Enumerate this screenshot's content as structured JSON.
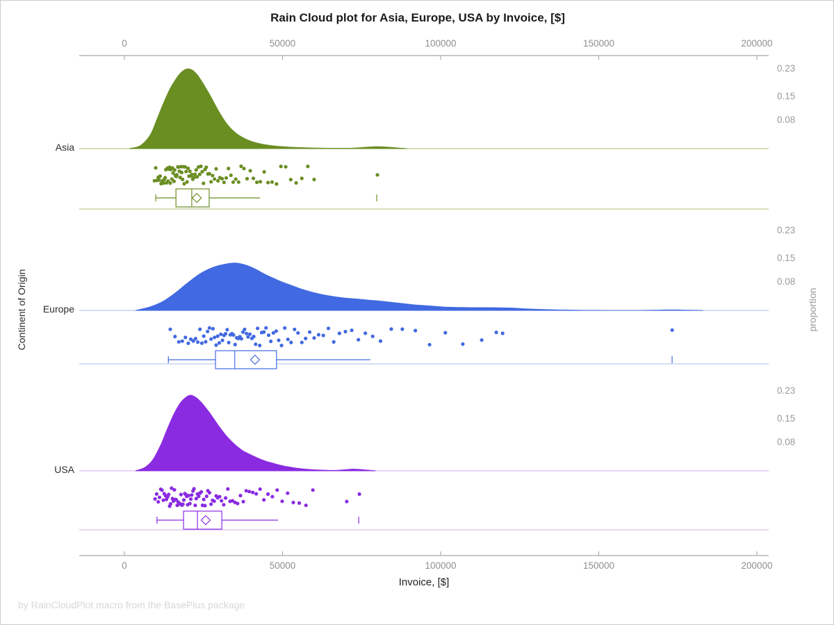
{
  "title": "Rain Cloud plot for Asia, Europe, USA by Invoice, [$]",
  "footer": "by RainCloudPlot macro from the BasePlus package",
  "x_axis": {
    "label": "Invoice, [$]",
    "tick_values": [
      0,
      50000,
      100000,
      150000,
      200000
    ],
    "tick_labels": [
      "0",
      "50000",
      "100000",
      "150000",
      "200000"
    ]
  },
  "y_axis": {
    "label": "Continent of Origin",
    "categories": [
      "Asia",
      "Europe",
      "USA"
    ]
  },
  "right_axis": {
    "label": "proportion",
    "tick_values": [
      0.23,
      0.15,
      0.08
    ],
    "tick_labels": [
      "0.23",
      "0.15",
      "0.08"
    ]
  },
  "colors": {
    "axis_line": "#a9a9a9",
    "tick_text": "#8e8e8e",
    "asia": "#6B8E23",
    "asia_light": "#a9c072",
    "europe": "#4169E1",
    "europe_light": "#aabdec",
    "usa": "#8A2BE2",
    "usa_light": "#cfaeea"
  },
  "chart_data": {
    "type": "raincloud",
    "title": "Rain Cloud plot for Asia, Europe, USA by Invoice, [$]",
    "xlabel": "Invoice, [$]",
    "ylabel": "Continent of Origin",
    "right_label": "proportion",
    "xlim": [
      0,
      200000
    ],
    "proportion_ticks": [
      0.23,
      0.15,
      0.08
    ],
    "legend": "none",
    "series": [
      {
        "name": "Asia",
        "color": "#6B8E23",
        "light_color": "#a9c072",
        "seed": 1,
        "density": [
          [
            1500,
            0
          ],
          [
            4500,
            0.006
          ],
          [
            6500,
            0.02
          ],
          [
            8500,
            0.045
          ],
          [
            10500,
            0.09
          ],
          [
            12500,
            0.135
          ],
          [
            14500,
            0.175
          ],
          [
            16500,
            0.205
          ],
          [
            18000,
            0.222
          ],
          [
            19800,
            0.232
          ],
          [
            21500,
            0.228
          ],
          [
            23000,
            0.215
          ],
          [
            24500,
            0.195
          ],
          [
            26000,
            0.172
          ],
          [
            27500,
            0.148
          ],
          [
            29000,
            0.122
          ],
          [
            30500,
            0.098
          ],
          [
            32000,
            0.077
          ],
          [
            33500,
            0.06
          ],
          [
            35000,
            0.047
          ],
          [
            36500,
            0.037
          ],
          [
            38500,
            0.027
          ],
          [
            40500,
            0.02
          ],
          [
            43000,
            0.014
          ],
          [
            45500,
            0.01
          ],
          [
            48000,
            0.007
          ],
          [
            51000,
            0.005
          ],
          [
            54000,
            0.0035
          ],
          [
            57000,
            0.0025
          ],
          [
            60000,
            0.0018
          ],
          [
            63000,
            0.0012
          ],
          [
            66000,
            0.001
          ],
          [
            70000,
            0.001
          ],
          [
            73500,
            0.002
          ],
          [
            76500,
            0.004
          ],
          [
            79500,
            0.0055
          ],
          [
            82000,
            0.005
          ],
          [
            84500,
            0.0035
          ],
          [
            87000,
            0.0015
          ],
          [
            89500,
            0
          ]
        ],
        "points": [
          9500,
          9900,
          10300,
          10700,
          11000,
          11300,
          11600,
          11900,
          12100,
          12400,
          12600,
          12900,
          13100,
          13300,
          13600,
          13800,
          14000,
          14300,
          14500,
          14700,
          15000,
          15200,
          15400,
          15700,
          15900,
          16100,
          16400,
          16600,
          16900,
          17100,
          17400,
          17600,
          17900,
          18100,
          18400,
          18700,
          18900,
          19200,
          19500,
          19800,
          20100,
          20400,
          20700,
          21000,
          21300,
          21600,
          22000,
          22300,
          22700,
          23000,
          23400,
          23800,
          24200,
          24600,
          25000,
          25500,
          25900,
          26400,
          26900,
          27400,
          27900,
          28500,
          29000,
          29600,
          30200,
          30900,
          31500,
          32200,
          32900,
          33700,
          34400,
          35200,
          36100,
          36900,
          37800,
          38800,
          39800,
          40800,
          41900,
          43000,
          44200,
          45400,
          46700,
          48100,
          49500,
          51000,
          52600,
          54300,
          56100,
          58000,
          60000,
          80000
        ],
        "box": {
          "whisker_lo": 9900,
          "q1": 16300,
          "median": 21300,
          "mean": 22900,
          "q3": 26800,
          "whisker_hi": 42900,
          "outliers": [
            79800
          ]
        }
      },
      {
        "name": "Europe",
        "color": "#4169E1",
        "light_color": "#aabdec",
        "seed": 2,
        "density": [
          [
            3500,
            0
          ],
          [
            8000,
            0.01
          ],
          [
            12000,
            0.025
          ],
          [
            16000,
            0.05
          ],
          [
            20000,
            0.08
          ],
          [
            24000,
            0.107
          ],
          [
            28000,
            0.125
          ],
          [
            31500,
            0.134
          ],
          [
            35000,
            0.138
          ],
          [
            38000,
            0.133
          ],
          [
            41000,
            0.122
          ],
          [
            44000,
            0.107
          ],
          [
            47000,
            0.094
          ],
          [
            50000,
            0.082
          ],
          [
            53000,
            0.072
          ],
          [
            56000,
            0.062
          ],
          [
            59000,
            0.054
          ],
          [
            62000,
            0.047
          ],
          [
            65000,
            0.042
          ],
          [
            68000,
            0.038
          ],
          [
            71000,
            0.035
          ],
          [
            74000,
            0.033
          ],
          [
            77000,
            0.03
          ],
          [
            80000,
            0.028
          ],
          [
            83000,
            0.025
          ],
          [
            86000,
            0.022
          ],
          [
            89000,
            0.019
          ],
          [
            92000,
            0.016
          ],
          [
            95000,
            0.014
          ],
          [
            98000,
            0.012
          ],
          [
            101000,
            0.01
          ],
          [
            104000,
            0.009
          ],
          [
            107000,
            0.0085
          ],
          [
            110000,
            0.008
          ],
          [
            113000,
            0.008
          ],
          [
            116000,
            0.008
          ],
          [
            119000,
            0.0075
          ],
          [
            122000,
            0.007
          ],
          [
            125000,
            0.0055
          ],
          [
            128000,
            0.004
          ],
          [
            131000,
            0.003
          ],
          [
            135000,
            0.002
          ],
          [
            139000,
            0.0012
          ],
          [
            144000,
            0.0006
          ],
          [
            150000,
            0.0002
          ],
          [
            156000,
            0
          ],
          [
            163000,
            0
          ],
          [
            168000,
            0.0008
          ],
          [
            173000,
            0.0015
          ],
          [
            178000,
            0.0008
          ],
          [
            183000,
            0
          ]
        ],
        "points": [
          14500,
          16000,
          17200,
          18300,
          19300,
          20200,
          21000,
          21800,
          22500,
          23200,
          23900,
          24500,
          25100,
          25700,
          26300,
          26900,
          27400,
          28000,
          28500,
          29000,
          29500,
          30000,
          30500,
          31000,
          31500,
          32000,
          32500,
          33000,
          33500,
          34000,
          34500,
          35000,
          35500,
          36000,
          36500,
          37000,
          37500,
          38000,
          38600,
          39100,
          39700,
          40300,
          40900,
          41500,
          42100,
          42800,
          43400,
          44100,
          44800,
          45600,
          46300,
          47100,
          48000,
          48800,
          49700,
          50700,
          51700,
          52700,
          53800,
          54900,
          56100,
          57300,
          58600,
          60000,
          61400,
          62900,
          64500,
          66200,
          68000,
          69900,
          71900,
          74000,
          76200,
          78500,
          81000,
          84400,
          87900,
          92000,
          96500,
          101500,
          107000,
          113000,
          117600,
          119600,
          173200
        ],
        "box": {
          "whisker_lo": 13900,
          "q1": 28800,
          "median": 34900,
          "mean": 41300,
          "q3": 48100,
          "whisker_hi": 77800,
          "outliers": [
            173200
          ]
        }
      },
      {
        "name": "USA",
        "color": "#8A2BE2",
        "light_color": "#cfaeea",
        "seed": 3,
        "density": [
          [
            3500,
            0
          ],
          [
            6500,
            0.01
          ],
          [
            9000,
            0.032
          ],
          [
            11500,
            0.075
          ],
          [
            13500,
            0.12
          ],
          [
            15500,
            0.162
          ],
          [
            17500,
            0.195
          ],
          [
            19200,
            0.212
          ],
          [
            20900,
            0.22
          ],
          [
            22500,
            0.214
          ],
          [
            24000,
            0.202
          ],
          [
            25500,
            0.186
          ],
          [
            27000,
            0.168
          ],
          [
            28500,
            0.148
          ],
          [
            30000,
            0.128
          ],
          [
            31500,
            0.11
          ],
          [
            33000,
            0.094
          ],
          [
            34500,
            0.08
          ],
          [
            36000,
            0.068
          ],
          [
            37500,
            0.058
          ],
          [
            39000,
            0.051
          ],
          [
            41000,
            0.042
          ],
          [
            43000,
            0.034
          ],
          [
            45000,
            0.027
          ],
          [
            47000,
            0.022
          ],
          [
            49000,
            0.017
          ],
          [
            51000,
            0.013
          ],
          [
            53500,
            0.009
          ],
          [
            56000,
            0.006
          ],
          [
            58500,
            0.004
          ],
          [
            61000,
            0.0025
          ],
          [
            64000,
            0.0015
          ],
          [
            67000,
            0.0015
          ],
          [
            70000,
            0.0035
          ],
          [
            72300,
            0.005
          ],
          [
            74500,
            0.004
          ],
          [
            77000,
            0.002
          ],
          [
            79500,
            0
          ]
        ],
        "points": [
          9700,
          10200,
          10700,
          11100,
          11500,
          11900,
          12300,
          12600,
          13000,
          13300,
          13700,
          14000,
          14300,
          14600,
          14900,
          15200,
          15500,
          15800,
          16100,
          16400,
          16700,
          17000,
          17300,
          17600,
          17900,
          18200,
          18500,
          18800,
          19100,
          19400,
          19700,
          20000,
          20300,
          20700,
          21000,
          21300,
          21700,
          22000,
          22400,
          22700,
          23100,
          23500,
          23900,
          24300,
          24700,
          25100,
          25500,
          26000,
          26400,
          26900,
          27400,
          27900,
          28400,
          29000,
          29500,
          30100,
          30700,
          31400,
          32000,
          32700,
          33400,
          34200,
          35000,
          35800,
          36700,
          37600,
          38500,
          39500,
          40600,
          41700,
          42900,
          44100,
          45400,
          46800,
          48300,
          49900,
          51600,
          53400,
          55300,
          57400,
          59600,
          70300,
          74300
        ],
        "box": {
          "whisker_lo": 10300,
          "q1": 18700,
          "median": 23100,
          "mean": 25700,
          "q3": 30800,
          "whisker_hi": 48600,
          "outliers": [
            74100
          ]
        }
      }
    ]
  }
}
